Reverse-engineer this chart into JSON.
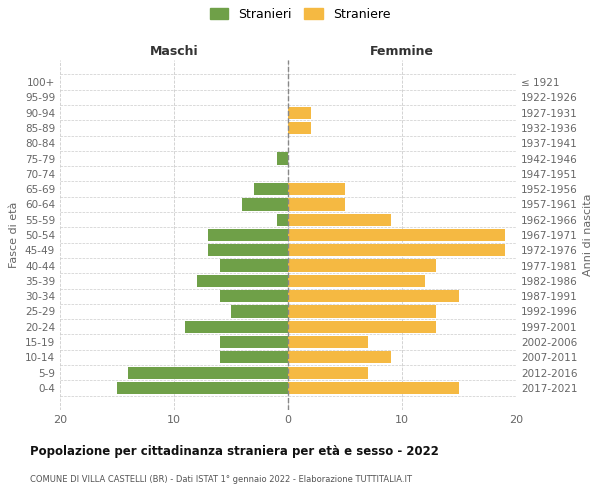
{
  "age_groups": [
    "100+",
    "95-99",
    "90-94",
    "85-89",
    "80-84",
    "75-79",
    "70-74",
    "65-69",
    "60-64",
    "55-59",
    "50-54",
    "45-49",
    "40-44",
    "35-39",
    "30-34",
    "25-29",
    "20-24",
    "15-19",
    "10-14",
    "5-9",
    "0-4"
  ],
  "birth_years": [
    "≤ 1921",
    "1922-1926",
    "1927-1931",
    "1932-1936",
    "1937-1941",
    "1942-1946",
    "1947-1951",
    "1952-1956",
    "1957-1961",
    "1962-1966",
    "1967-1971",
    "1972-1976",
    "1977-1981",
    "1982-1986",
    "1987-1991",
    "1992-1996",
    "1997-2001",
    "2002-2006",
    "2007-2011",
    "2012-2016",
    "2017-2021"
  ],
  "maschi": [
    0,
    0,
    0,
    0,
    0,
    1,
    0,
    3,
    4,
    1,
    7,
    7,
    6,
    8,
    6,
    5,
    9,
    6,
    6,
    14,
    15
  ],
  "femmine": [
    0,
    0,
    2,
    2,
    0,
    0,
    0,
    5,
    5,
    9,
    19,
    19,
    13,
    12,
    15,
    13,
    13,
    7,
    9,
    7,
    15
  ],
  "maschi_color": "#6fa048",
  "femmine_color": "#f5b942",
  "background_color": "#ffffff",
  "grid_color": "#cccccc",
  "dashed_line_color": "#888888",
  "title": "Popolazione per cittadinanza straniera per età e sesso - 2022",
  "subtitle": "COMUNE DI VILLA CASTELLI (BR) - Dati ISTAT 1° gennaio 2022 - Elaborazione TUTTITALIA.IT",
  "ylabel_left": "Fasce di età",
  "ylabel_right": "Anni di nascita",
  "header_left": "Maschi",
  "header_right": "Femmine",
  "legend_maschi": "Stranieri",
  "legend_femmine": "Straniere",
  "xlim": 20,
  "bar_height": 0.8
}
